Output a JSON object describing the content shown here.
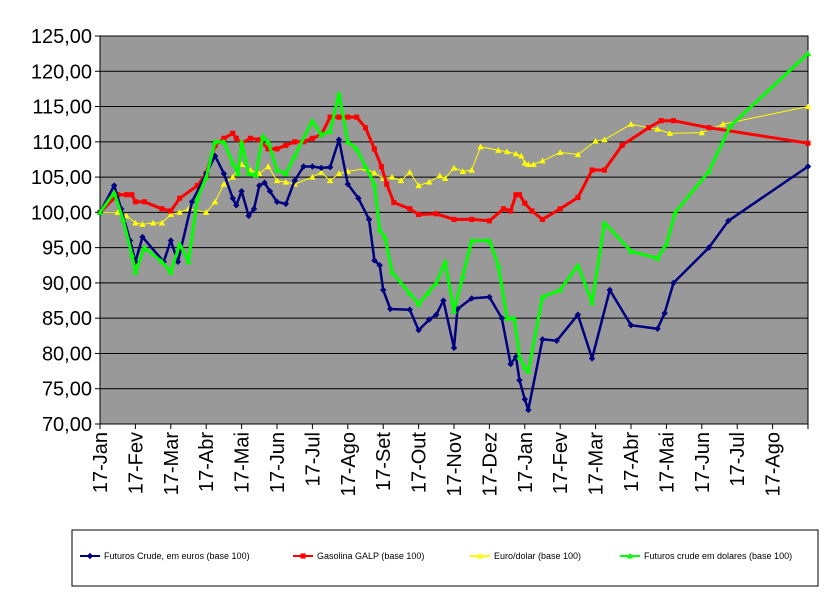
{
  "chart_data": {
    "type": "line",
    "title": "",
    "xlabel": "",
    "ylabel": "",
    "ylim": [
      70,
      125
    ],
    "y_ticks": [
      "125,00",
      "120,00",
      "115,00",
      "110,00",
      "105,00",
      "100,00",
      "95,00",
      "90,00",
      "85,00",
      "80,00",
      "75,00",
      "70,00"
    ],
    "x_ticks": [
      "17-Jan",
      "17-Fev",
      "17-Mar",
      "17-Abr",
      "17-Mai",
      "17-Jun",
      "17-Jul",
      "17-Ago",
      "17-Set",
      "17-Out",
      "17-Nov",
      "17-Dez",
      "17-Jan",
      "17-Fev",
      "17-Mar",
      "17-Abr",
      "17-Mai",
      "17-Jun",
      "17-Jul",
      "17-Ago"
    ],
    "grid": true,
    "plot_background": "#999999",
    "legend_position": "bottom",
    "series": [
      {
        "name": "Futuros Crude, em euros (base 100)",
        "color": "#000080",
        "marker": "diamond",
        "points": [
          [
            0,
            100
          ],
          [
            0.4,
            103.8
          ],
          [
            0.6,
            100.5
          ],
          [
            0.85,
            96
          ],
          [
            1,
            93
          ],
          [
            1.2,
            96.5
          ],
          [
            1.8,
            93
          ],
          [
            2,
            96
          ],
          [
            2.2,
            93
          ],
          [
            2.6,
            101.5
          ],
          [
            3,
            105.5
          ],
          [
            3.25,
            108
          ],
          [
            3.5,
            105.5
          ],
          [
            3.75,
            102
          ],
          [
            3.85,
            101
          ],
          [
            4,
            103
          ],
          [
            4.2,
            99.5
          ],
          [
            4.35,
            100.5
          ],
          [
            4.5,
            103.8
          ],
          [
            4.65,
            104.2
          ],
          [
            4.8,
            103
          ],
          [
            5,
            101.5
          ],
          [
            5.25,
            101.2
          ],
          [
            5.5,
            104.5
          ],
          [
            5.75,
            106.5
          ],
          [
            6,
            106.5
          ],
          [
            6.25,
            106.3
          ],
          [
            6.5,
            106.4
          ],
          [
            6.75,
            110.3
          ],
          [
            7,
            104
          ],
          [
            7.3,
            102
          ],
          [
            7.6,
            99
          ],
          [
            7.75,
            93.2
          ],
          [
            7.9,
            92.5
          ],
          [
            8,
            89
          ],
          [
            8.2,
            86.3
          ],
          [
            8.75,
            86.2
          ],
          [
            9,
            83.3
          ],
          [
            9.3,
            84.8
          ],
          [
            9.5,
            85.5
          ],
          [
            9.7,
            87.5
          ],
          [
            10,
            80.8
          ],
          [
            10.1,
            86.3
          ],
          [
            10.5,
            87.8
          ],
          [
            11,
            88
          ],
          [
            11.35,
            85
          ],
          [
            11.6,
            78.5
          ],
          [
            11.75,
            79.5
          ],
          [
            11.85,
            76.2
          ],
          [
            12,
            73.5
          ],
          [
            12.1,
            72
          ],
          [
            12.5,
            82
          ],
          [
            12.9,
            81.8
          ],
          [
            13.5,
            85.5
          ],
          [
            13.9,
            79.3
          ],
          [
            14.4,
            89
          ],
          [
            15,
            84
          ],
          [
            15.75,
            83.5
          ],
          [
            15.95,
            85.7
          ],
          [
            16.2,
            90
          ],
          [
            17.2,
            95
          ],
          [
            17.75,
            98.8
          ],
          [
            20,
            106.5
          ]
        ]
      },
      {
        "name": "Gasolina GALP (base 100)",
        "color": "#ff0000",
        "marker": "square",
        "points": [
          [
            0,
            100
          ],
          [
            0.5,
            102.5
          ],
          [
            0.75,
            102.5
          ],
          [
            0.9,
            102.5
          ],
          [
            1,
            101.5
          ],
          [
            1.25,
            101.5
          ],
          [
            1.75,
            100.5
          ],
          [
            2,
            100.2
          ],
          [
            2.25,
            102
          ],
          [
            2.75,
            103.8
          ],
          [
            3,
            105.5
          ],
          [
            3.25,
            109.5
          ],
          [
            3.5,
            110.5
          ],
          [
            3.75,
            111.2
          ],
          [
            3.85,
            110.5
          ],
          [
            4,
            109.8
          ],
          [
            4.25,
            110.5
          ],
          [
            4.5,
            110.3
          ],
          [
            4.75,
            109
          ],
          [
            5,
            109
          ],
          [
            5.25,
            109.5
          ],
          [
            5.5,
            110
          ],
          [
            5.75,
            110
          ],
          [
            6,
            110.5
          ],
          [
            6.25,
            111
          ],
          [
            6.5,
            113.5
          ],
          [
            6.75,
            113.5
          ],
          [
            7,
            113.5
          ],
          [
            7.25,
            113.5
          ],
          [
            7.5,
            112
          ],
          [
            7.75,
            109
          ],
          [
            7.95,
            106.5
          ],
          [
            8.1,
            104
          ],
          [
            8.3,
            101.4
          ],
          [
            8.75,
            100.5
          ],
          [
            9,
            99.7
          ],
          [
            9.5,
            99.8
          ],
          [
            10,
            99
          ],
          [
            10.5,
            99
          ],
          [
            11,
            98.8
          ],
          [
            11.4,
            100.5
          ],
          [
            11.6,
            100.2
          ],
          [
            11.75,
            102.5
          ],
          [
            11.85,
            102.5
          ],
          [
            12,
            101.3
          ],
          [
            12.2,
            100.2
          ],
          [
            12.5,
            99
          ],
          [
            13,
            100.5
          ],
          [
            13.5,
            102.1
          ],
          [
            13.9,
            106
          ],
          [
            14.25,
            106
          ],
          [
            14.75,
            109.5
          ],
          [
            15.5,
            112
          ],
          [
            15.85,
            113
          ],
          [
            16.2,
            113
          ],
          [
            17.2,
            112
          ],
          [
            20,
            109.8
          ]
        ]
      },
      {
        "name": "Euro/dolar (base 100)",
        "color": "#ffff00",
        "marker": "triangle",
        "points": [
          [
            0,
            100
          ],
          [
            0.5,
            100
          ],
          [
            0.75,
            99.5
          ],
          [
            1,
            98.5
          ],
          [
            1.2,
            98.3
          ],
          [
            1.5,
            98.5
          ],
          [
            1.75,
            98.5
          ],
          [
            2,
            99.7
          ],
          [
            2.25,
            100
          ],
          [
            2.5,
            100.5
          ],
          [
            3,
            100
          ],
          [
            3.25,
            101.5
          ],
          [
            3.5,
            104
          ],
          [
            3.75,
            105
          ],
          [
            4,
            106.8
          ],
          [
            4.25,
            106
          ],
          [
            4.5,
            105.5
          ],
          [
            4.75,
            106.5
          ],
          [
            5,
            104.5
          ],
          [
            5.25,
            104.3
          ],
          [
            5.5,
            104
          ],
          [
            6,
            105
          ],
          [
            6.25,
            105.7
          ],
          [
            6.5,
            104.5
          ],
          [
            6.75,
            105.5
          ],
          [
            7,
            105.8
          ],
          [
            7.5,
            106.2
          ],
          [
            7.75,
            105.6
          ],
          [
            8,
            104.8
          ],
          [
            8.25,
            105
          ],
          [
            8.5,
            104.5
          ],
          [
            8.75,
            105.7
          ],
          [
            9,
            103.8
          ],
          [
            9.3,
            104.3
          ],
          [
            9.6,
            105.2
          ],
          [
            9.75,
            104.8
          ],
          [
            10,
            106.3
          ],
          [
            10.25,
            105.8
          ],
          [
            10.5,
            106
          ],
          [
            10.75,
            109.3
          ],
          [
            11.25,
            108.8
          ],
          [
            11.5,
            108.6
          ],
          [
            11.75,
            108.3
          ],
          [
            11.9,
            108
          ],
          [
            12,
            107
          ],
          [
            12.1,
            106.8
          ],
          [
            12.25,
            106.8
          ],
          [
            12.5,
            107.3
          ],
          [
            13,
            108.5
          ],
          [
            13.5,
            108.2
          ],
          [
            14,
            110.1
          ],
          [
            14.25,
            110.3
          ],
          [
            15,
            112.5
          ],
          [
            15.5,
            112
          ],
          [
            15.75,
            111.8
          ],
          [
            16.1,
            111.2
          ],
          [
            17,
            111.3
          ],
          [
            17.6,
            112.5
          ],
          [
            20,
            115
          ]
        ]
      },
      {
        "name": "Futuros crude em dolares (base 100)",
        "color": "#00ff00",
        "marker": "triangle",
        "points": [
          [
            0,
            100
          ],
          [
            0.4,
            102.8
          ],
          [
            0.65,
            99
          ],
          [
            0.9,
            94
          ],
          [
            1,
            91.5
          ],
          [
            1.25,
            95
          ],
          [
            1.75,
            93
          ],
          [
            2,
            91.5
          ],
          [
            2.25,
            95.5
          ],
          [
            2.5,
            93
          ],
          [
            2.75,
            102
          ],
          [
            3,
            105
          ],
          [
            3.25,
            110
          ],
          [
            3.5,
            110
          ],
          [
            3.75,
            107
          ],
          [
            3.9,
            105.5
          ],
          [
            4,
            110
          ],
          [
            4.2,
            105.5
          ],
          [
            4.4,
            105.3
          ],
          [
            4.6,
            110.8
          ],
          [
            4.75,
            110
          ],
          [
            5,
            106
          ],
          [
            5.25,
            105.5
          ],
          [
            5.5,
            108
          ],
          [
            6,
            113
          ],
          [
            6.25,
            111
          ],
          [
            6.5,
            111.5
          ],
          [
            6.75,
            116.8
          ],
          [
            7,
            110
          ],
          [
            7.25,
            109
          ],
          [
            7.5,
            106.5
          ],
          [
            7.75,
            104
          ],
          [
            7.9,
            97.5
          ],
          [
            8.05,
            96.5
          ],
          [
            8.25,
            91.5
          ],
          [
            8.75,
            88.5
          ],
          [
            9,
            87
          ],
          [
            9.25,
            88.5
          ],
          [
            9.5,
            90
          ],
          [
            9.75,
            93
          ],
          [
            10,
            86
          ],
          [
            10.25,
            91
          ],
          [
            10.5,
            96
          ],
          [
            11,
            96
          ],
          [
            11.25,
            92.5
          ],
          [
            11.5,
            85
          ],
          [
            11.7,
            85
          ],
          [
            11.85,
            79.5
          ],
          [
            12,
            78
          ],
          [
            12.1,
            77.5
          ],
          [
            12.5,
            88
          ],
          [
            13,
            89
          ],
          [
            13.5,
            92.5
          ],
          [
            13.9,
            87.2
          ],
          [
            14.25,
            98.5
          ],
          [
            15,
            94.5
          ],
          [
            15.75,
            93.5
          ],
          [
            16,
            95.5
          ],
          [
            16.25,
            100
          ],
          [
            17.2,
            105.8
          ],
          [
            17.8,
            112.2
          ],
          [
            20,
            122.5
          ]
        ]
      }
    ]
  }
}
